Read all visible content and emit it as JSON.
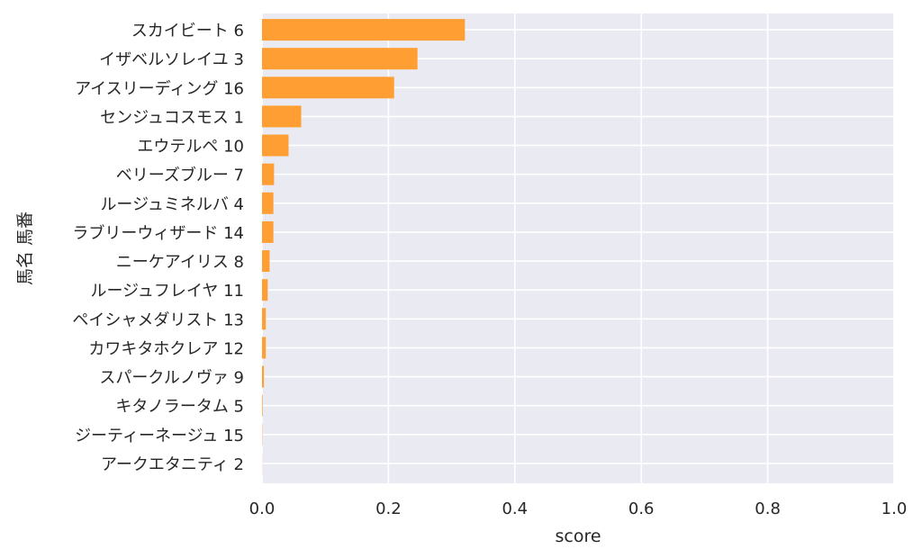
{
  "chart_data": {
    "type": "bar",
    "orientation": "horizontal",
    "xlabel": "score",
    "ylabel": "馬名 馬番",
    "xlim": [
      0,
      1
    ],
    "xticks": [
      0,
      0.2,
      0.4,
      0.6,
      0.8,
      1
    ],
    "xtick_labels": [
      "0.0",
      "0.2",
      "0.4",
      "0.6",
      "0.8",
      "1.0"
    ],
    "grid": true,
    "bar_color": "#ff9f33",
    "plot_background": "#eaeaf2",
    "categories": [
      "スカイビート 6",
      "イザベルソレイユ 3",
      "アイスリーディング 16",
      "センジュコスモス 1",
      "エウテルペ 10",
      "ベリーズブルー 7",
      "ルージュミネルバ 4",
      "ラブリーウィザード 14",
      "ニーケアイリス 8",
      "ルージュフレイヤ 11",
      "ペイシャメダリスト 13",
      "カワキタホクレア 12",
      "スパークルノヴァ 9",
      "キタノラータム 5",
      "ジーティーネージュ 15",
      "アークエタニティ 2"
    ],
    "values": [
      0.321,
      0.246,
      0.209,
      0.062,
      0.042,
      0.019,
      0.018,
      0.018,
      0.012,
      0.009,
      0.006,
      0.006,
      0.003,
      0.001,
      0.0005,
      0.0002
    ]
  }
}
